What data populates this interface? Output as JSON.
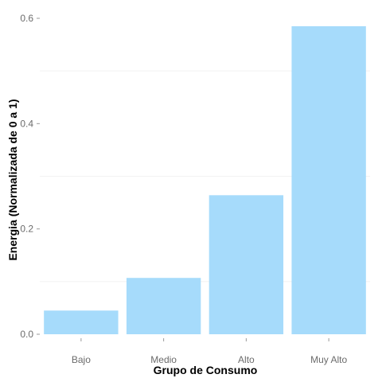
{
  "chart_data": {
    "type": "bar",
    "title": "",
    "categories": [
      "Bajo",
      "Medio",
      "Alto",
      "Muy Alto"
    ],
    "values": [
      0.045,
      0.107,
      0.264,
      0.585
    ],
    "xlabel": "Grupo de Consumo",
    "ylabel": "Energia (Normalizada de 0 a 1)",
    "ylim": [
      0,
      0.6
    ],
    "yticks": [
      0.0,
      0.2,
      0.4,
      0.6
    ],
    "ytick_labels": [
      "0.0",
      "0.2",
      "0.4",
      "0.6"
    ],
    "bar_color": "#a6dbfb",
    "grid": true,
    "legend": "none"
  }
}
